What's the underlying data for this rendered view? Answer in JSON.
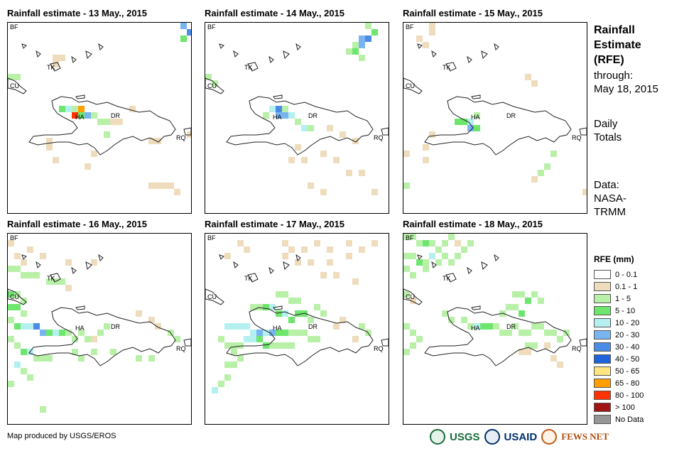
{
  "panels": [
    {
      "title": "Rainfall estimate - 13 May., 2015"
    },
    {
      "title": "Rainfall estimate - 14 May., 2015"
    },
    {
      "title": "Rainfall estimate - 15 May., 2015"
    },
    {
      "title": "Rainfall estimate - 16 May., 2015"
    },
    {
      "title": "Rainfall estimate - 17 May., 2015"
    },
    {
      "title": "Rainfall estimate - 18 May., 2015"
    }
  ],
  "map_labels": {
    "bf": "BF",
    "tk": "TK",
    "cu": "CU",
    "ha": "HA",
    "dr": "DR",
    "rq": "RQ"
  },
  "side": {
    "title_line1": "Rainfall",
    "title_line2": "Estimate",
    "title_line3": "(RFE)",
    "through_label": "through:",
    "through_date": "May 18, 2015",
    "daily_line1": "Daily",
    "daily_line2": "Totals",
    "data_line1": "Data:",
    "data_line2": "NASA-",
    "data_line3": "TRMM"
  },
  "legend": {
    "title": "RFE (mm)",
    "items": [
      {
        "label": "0 - 0.1",
        "color": "#ffffff"
      },
      {
        "label": "0.1 - 1",
        "color": "#efdcbc"
      },
      {
        "label": "1 - 5",
        "color": "#b9f0a8"
      },
      {
        "label": "5 - 10",
        "color": "#6ee66e"
      },
      {
        "label": "10 - 20",
        "color": "#b4f0f0"
      },
      {
        "label": "20 - 30",
        "color": "#78b4f0"
      },
      {
        "label": "30 - 40",
        "color": "#4a8ce6"
      },
      {
        "label": "40 - 50",
        "color": "#1e64dc"
      },
      {
        "label": "50 - 65",
        "color": "#ffe682"
      },
      {
        "label": "65 - 80",
        "color": "#ffa000"
      },
      {
        "label": "80 - 100",
        "color": "#ff3200"
      },
      {
        "label": "> 100",
        "color": "#a01414"
      },
      {
        "label": "No Data",
        "color": "#969696"
      }
    ]
  },
  "footer": {
    "credit": "Map produced by USGS/EROS",
    "logo_usgs": "USGS",
    "logo_usaid": "USAID",
    "logo_fews": "FEWS NET"
  }
}
